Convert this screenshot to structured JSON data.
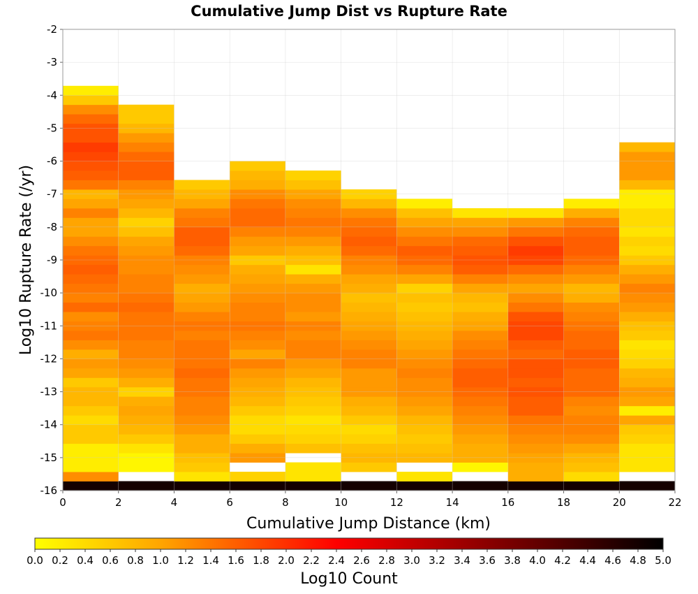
{
  "chart_data": {
    "type": "heatmap",
    "title": "Cumulative Jump Dist vs Rupture Rate",
    "xlabel": "Cumulative Jump Distance (km)",
    "ylabel": "Log10 Rupture Rate (/yr)",
    "xlim": [
      0,
      22
    ],
    "ylim": [
      -16,
      -2
    ],
    "x_ticks": [
      0,
      2,
      4,
      6,
      8,
      10,
      12,
      14,
      16,
      18,
      20,
      22
    ],
    "y_ticks": [
      -2,
      -3,
      -4,
      -5,
      -6,
      -7,
      -8,
      -9,
      -10,
      -11,
      -12,
      -13,
      -14,
      -15,
      -16
    ],
    "grid": true,
    "x_bin_edges": [
      0,
      2,
      4,
      6,
      8,
      10,
      12,
      14,
      16,
      18,
      20,
      22
    ],
    "y_bin_start": -16,
    "y_bin_width": 0.285714,
    "colorbar": {
      "label": "Log10 Count",
      "min": 0.0,
      "max": 5.0,
      "ticks": [
        "0.0",
        "0.2",
        "0.4",
        "0.6",
        "0.8",
        "1.0",
        "1.2",
        "1.4",
        "1.6",
        "1.8",
        "2.0",
        "2.2",
        "2.4",
        "2.6",
        "2.8",
        "3.0",
        "3.2",
        "3.4",
        "3.6",
        "3.8",
        "4.0",
        "4.2",
        "4.4",
        "4.6",
        "4.8",
        "5.0"
      ],
      "placement": "bottom",
      "colors": [
        "#ffff00",
        "#ffa500",
        "#ff0000",
        "#8b0000",
        "#000000"
      ]
    },
    "columns": [
      {
        "x_range": [
          0,
          2
        ],
        "values": [
          4.8,
          1.2,
          0.2,
          0.2,
          0.2,
          0.6,
          0.6,
          0.4,
          0.6,
          0.8,
          0.8,
          0.6,
          1.0,
          1.1,
          0.9,
          1.2,
          1.4,
          1.3,
          1.2,
          1.5,
          1.3,
          1.4,
          1.5,
          1.6,
          1.5,
          1.4,
          1.2,
          1.0,
          1.0,
          1.3,
          1.0,
          0.8,
          1.4,
          1.6,
          1.7,
          1.8,
          1.9,
          1.7,
          1.7,
          1.5,
          1.2,
          0.6,
          0.2
        ]
      },
      {
        "x_range": [
          2,
          4
        ],
        "values": [
          4.8,
          null,
          0.1,
          0.1,
          0.3,
          0.6,
          0.8,
          0.9,
          1.0,
          0.9,
          0.5,
          0.9,
          1.1,
          1.2,
          1.3,
          1.3,
          1.4,
          1.4,
          1.4,
          1.5,
          1.4,
          1.3,
          1.3,
          1.2,
          1.2,
          1.1,
          1.0,
          0.7,
          0.5,
          0.8,
          1.0,
          1.1,
          1.3,
          1.6,
          1.6,
          1.5,
          1.3,
          1.1,
          0.8,
          0.6,
          0.6
        ]
      },
      {
        "x_range": [
          4,
          6
        ],
        "values": [
          4.8,
          0.3,
          0.6,
          0.7,
          0.9,
          0.9,
          1.1,
          1.2,
          1.3,
          1.3,
          1.4,
          1.4,
          1.5,
          1.4,
          1.4,
          1.4,
          1.3,
          1.4,
          1.3,
          1.1,
          1.0,
          0.9,
          1.1,
          1.2,
          1.3,
          1.5,
          1.6,
          1.6,
          1.4,
          1.3,
          1.0,
          0.8,
          0.6
        ]
      },
      {
        "x_range": [
          6,
          8
        ],
        "values": [
          4.8,
          0.5,
          null,
          1.1,
          0.9,
          0.6,
          0.4,
          0.4,
          0.6,
          0.8,
          0.9,
          1.0,
          1.1,
          1.3,
          1.0,
          1.2,
          1.3,
          1.4,
          1.3,
          1.3,
          1.2,
          1.1,
          1.0,
          0.9,
          0.6,
          1.0,
          1.1,
          1.3,
          1.5,
          1.5,
          1.4,
          1.2,
          0.9,
          0.8,
          0.6
        ]
      },
      {
        "x_range": [
          8,
          10
        ],
        "values": [
          4.8,
          0.3,
          0.3,
          null,
          0.7,
          0.5,
          0.4,
          0.3,
          0.5,
          0.6,
          0.7,
          0.8,
          1.0,
          1.1,
          1.3,
          1.3,
          1.2,
          1.3,
          1.1,
          1.2,
          1.2,
          1.1,
          0.9,
          0.3,
          0.7,
          0.9,
          1.1,
          1.3,
          1.4,
          1.3,
          1.2,
          1.0,
          0.7,
          0.5
        ]
      },
      {
        "x_range": [
          10,
          12
        ],
        "values": [
          4.8,
          null,
          0.6,
          0.8,
          0.7,
          0.5,
          0.4,
          0.6,
          0.8,
          0.9,
          1.1,
          1.1,
          1.1,
          1.3,
          1.3,
          1.2,
          1.1,
          1.0,
          0.9,
          0.8,
          0.7,
          0.9,
          1.0,
          1.2,
          1.3,
          1.5,
          1.6,
          1.5,
          1.4,
          1.2,
          0.8,
          0.5
        ]
      },
      {
        "x_range": [
          12,
          14
        ],
        "values": [
          4.8,
          0.3,
          null,
          0.8,
          0.7,
          0.6,
          0.7,
          0.8,
          1.0,
          1.1,
          1.2,
          1.2,
          1.3,
          1.2,
          1.1,
          1.0,
          0.9,
          0.8,
          0.7,
          0.6,
          0.7,
          0.5,
          1.0,
          1.3,
          1.5,
          1.6,
          1.4,
          1.2,
          1.0,
          0.7,
          0.2
        ]
      },
      {
        "x_range": [
          14,
          16
        ],
        "values": [
          4.8,
          null,
          0.1,
          0.9,
          0.9,
          1.0,
          1.1,
          1.2,
          1.3,
          1.4,
          1.5,
          1.6,
          1.6,
          1.5,
          1.4,
          1.3,
          1.2,
          1.0,
          0.9,
          0.7,
          0.8,
          1.0,
          1.3,
          1.6,
          1.7,
          1.6,
          1.5,
          1.2,
          1.0,
          0.3
        ]
      },
      {
        "x_range": [
          16,
          18
        ],
        "values": [
          4.8,
          0.9,
          0.9,
          1.0,
          1.1,
          1.2,
          1.3,
          1.4,
          1.6,
          1.6,
          1.7,
          1.6,
          1.7,
          1.7,
          1.5,
          1.6,
          1.8,
          1.8,
          1.7,
          1.4,
          1.2,
          1.0,
          1.2,
          1.5,
          1.8,
          1.9,
          1.7,
          1.4,
          1.1,
          0.3
        ]
      },
      {
        "x_range": [
          18,
          20
        ],
        "values": [
          4.8,
          0.4,
          0.7,
          0.8,
          1.0,
          1.2,
          1.3,
          1.3,
          1.2,
          1.3,
          1.5,
          1.5,
          1.5,
          1.6,
          1.6,
          1.5,
          1.5,
          1.4,
          1.3,
          1.2,
          0.9,
          0.8,
          1.1,
          1.3,
          1.5,
          1.6,
          1.6,
          1.5,
          1.3,
          0.9,
          0.2
        ]
      },
      {
        "x_range": [
          20,
          22
        ],
        "values": [
          4.8,
          null,
          0.3,
          0.3,
          0.3,
          0.5,
          0.6,
          1.0,
          0.2,
          1.0,
          1.1,
          0.9,
          0.8,
          0.5,
          0.4,
          0.3,
          0.6,
          0.7,
          0.9,
          1.1,
          1.2,
          1.3,
          1.1,
          0.9,
          0.6,
          0.4,
          0.5,
          0.3,
          0.4,
          0.4,
          0.2,
          0.2,
          0.8,
          1.1,
          1.1,
          1.1,
          0.8
        ]
      }
    ]
  }
}
